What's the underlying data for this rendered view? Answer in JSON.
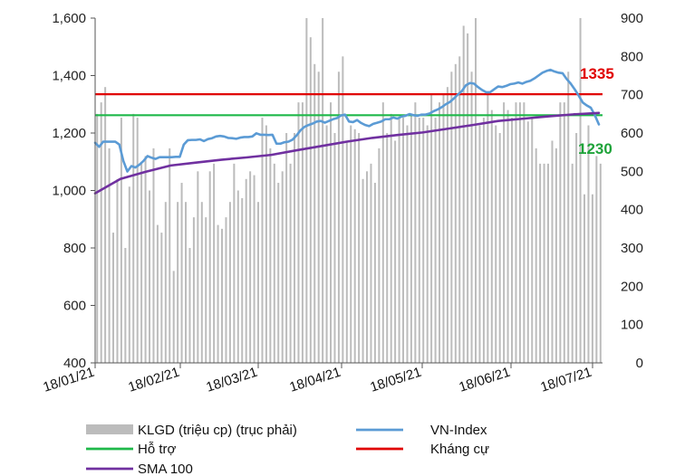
{
  "chart_data": {
    "type": "line",
    "x_tick_labels": [
      "18/01/21",
      "18/02/21",
      "18/03/21",
      "18/04/21",
      "18/05/21",
      "18/06/21",
      "18/07/21"
    ],
    "left_axis": {
      "min": 400,
      "max": 1600,
      "ticks": [
        "400",
        "600",
        "800",
        "1,000",
        "1,200",
        "1,400",
        "1,600"
      ]
    },
    "right_axis": {
      "min": 0,
      "max": 900,
      "ticks": [
        "0",
        "100",
        "200",
        "300",
        "400",
        "500",
        "600",
        "700",
        "800",
        "900"
      ]
    },
    "annotations": [
      {
        "text": "1335",
        "value": 1335,
        "color": "#e00000"
      },
      {
        "text": "1230",
        "value": 1230,
        "color": "#1fa33a"
      }
    ],
    "series": [
      {
        "name": "KLGD (triệu cp) (trục phải)",
        "type": "bar",
        "axis": "right",
        "color": "#bcbcbc",
        "values": [
          650,
          680,
          720,
          560,
          340,
          480,
          640,
          300,
          460,
          650,
          640,
          520,
          540,
          450,
          560,
          360,
          340,
          420,
          560,
          240,
          420,
          470,
          420,
          300,
          380,
          500,
          420,
          380,
          500,
          520,
          360,
          350,
          380,
          420,
          520,
          450,
          430,
          480,
          500,
          490,
          420,
          640,
          620,
          560,
          520,
          470,
          500,
          600,
          520,
          600,
          680,
          680,
          900,
          850,
          780,
          760,
          900,
          620,
          680,
          600,
          760,
          800,
          580,
          620,
          610,
          600,
          480,
          500,
          520,
          470,
          560,
          680,
          600,
          650,
          580,
          640,
          640,
          620,
          650,
          680,
          640,
          640,
          620,
          700,
          640,
          680,
          700,
          720,
          760,
          780,
          800,
          880,
          860,
          760,
          900,
          620,
          640,
          700,
          660,
          620,
          600,
          680,
          660,
          640,
          680,
          680,
          680,
          630,
          640,
          560,
          520,
          520,
          520,
          580,
          560,
          680,
          680,
          760,
          520,
          600,
          900,
          440,
          620,
          440,
          540,
          520
        ]
      },
      {
        "name": "VN-Index",
        "type": "line",
        "axis": "left",
        "color": "#5b9bd5",
        "values": [
          1166,
          1152,
          1170,
          1170,
          1170,
          1170,
          1160,
          1103,
          1066,
          1085,
          1080,
          1090,
          1103,
          1120,
          1114,
          1110,
          1116,
          1116,
          1116,
          1116,
          1117,
          1117,
          1160,
          1175,
          1176,
          1176,
          1178,
          1172,
          1179,
          1182,
          1188,
          1190,
          1188,
          1183,
          1182,
          1180,
          1184,
          1186,
          1186,
          1188,
          1199,
          1194,
          1194,
          1193,
          1194,
          1163,
          1163,
          1168,
          1170,
          1177,
          1192,
          1210,
          1222,
          1228,
          1233,
          1240,
          1242,
          1236,
          1242,
          1248,
          1252,
          1261,
          1264,
          1240,
          1238,
          1245,
          1235,
          1228,
          1224,
          1232,
          1236,
          1240,
          1248,
          1248,
          1254,
          1250,
          1257,
          1260,
          1266,
          1262,
          1260,
          1264,
          1264,
          1268,
          1276,
          1282,
          1290,
          1300,
          1308,
          1320,
          1334,
          1346,
          1366,
          1374,
          1372,
          1360,
          1350,
          1342,
          1342,
          1352,
          1362,
          1360,
          1364,
          1370,
          1372,
          1376,
          1372,
          1378,
          1382,
          1390,
          1400,
          1410,
          1416,
          1420,
          1414,
          1410,
          1408,
          1388,
          1372,
          1352,
          1330,
          1306,
          1296,
          1288,
          1262,
          1230
        ]
      },
      {
        "name": "Hỗ trợ",
        "type": "hline",
        "axis": "left",
        "color": "#1fb84a",
        "value": 1262
      },
      {
        "name": "Kháng cự",
        "type": "hline",
        "axis": "left",
        "color": "#e00000",
        "value": 1335
      },
      {
        "name": "SMA 100",
        "type": "line",
        "axis": "left",
        "color": "#7030a0",
        "values": [
          990,
          1040,
          1065,
          1087,
          1097,
          1107,
          1115,
          1124,
          1140,
          1155,
          1170,
          1183,
          1193,
          1202,
          1215,
          1228,
          1242,
          1250,
          1258,
          1265,
          1270
        ]
      }
    ],
    "legend": [
      {
        "label": "KLGD (triệu cp) (trục phải)",
        "kind": "bar",
        "color": "#bcbcbc"
      },
      {
        "label": "VN-Index",
        "kind": "line",
        "color": "#5b9bd5"
      },
      {
        "label": "Hỗ trợ",
        "kind": "line",
        "color": "#1fb84a"
      },
      {
        "label": "Kháng cự",
        "kind": "line",
        "color": "#e00000"
      },
      {
        "label": "SMA 100",
        "kind": "line",
        "color": "#7030a0"
      }
    ],
    "legend_position": "bottom",
    "grid": false
  }
}
